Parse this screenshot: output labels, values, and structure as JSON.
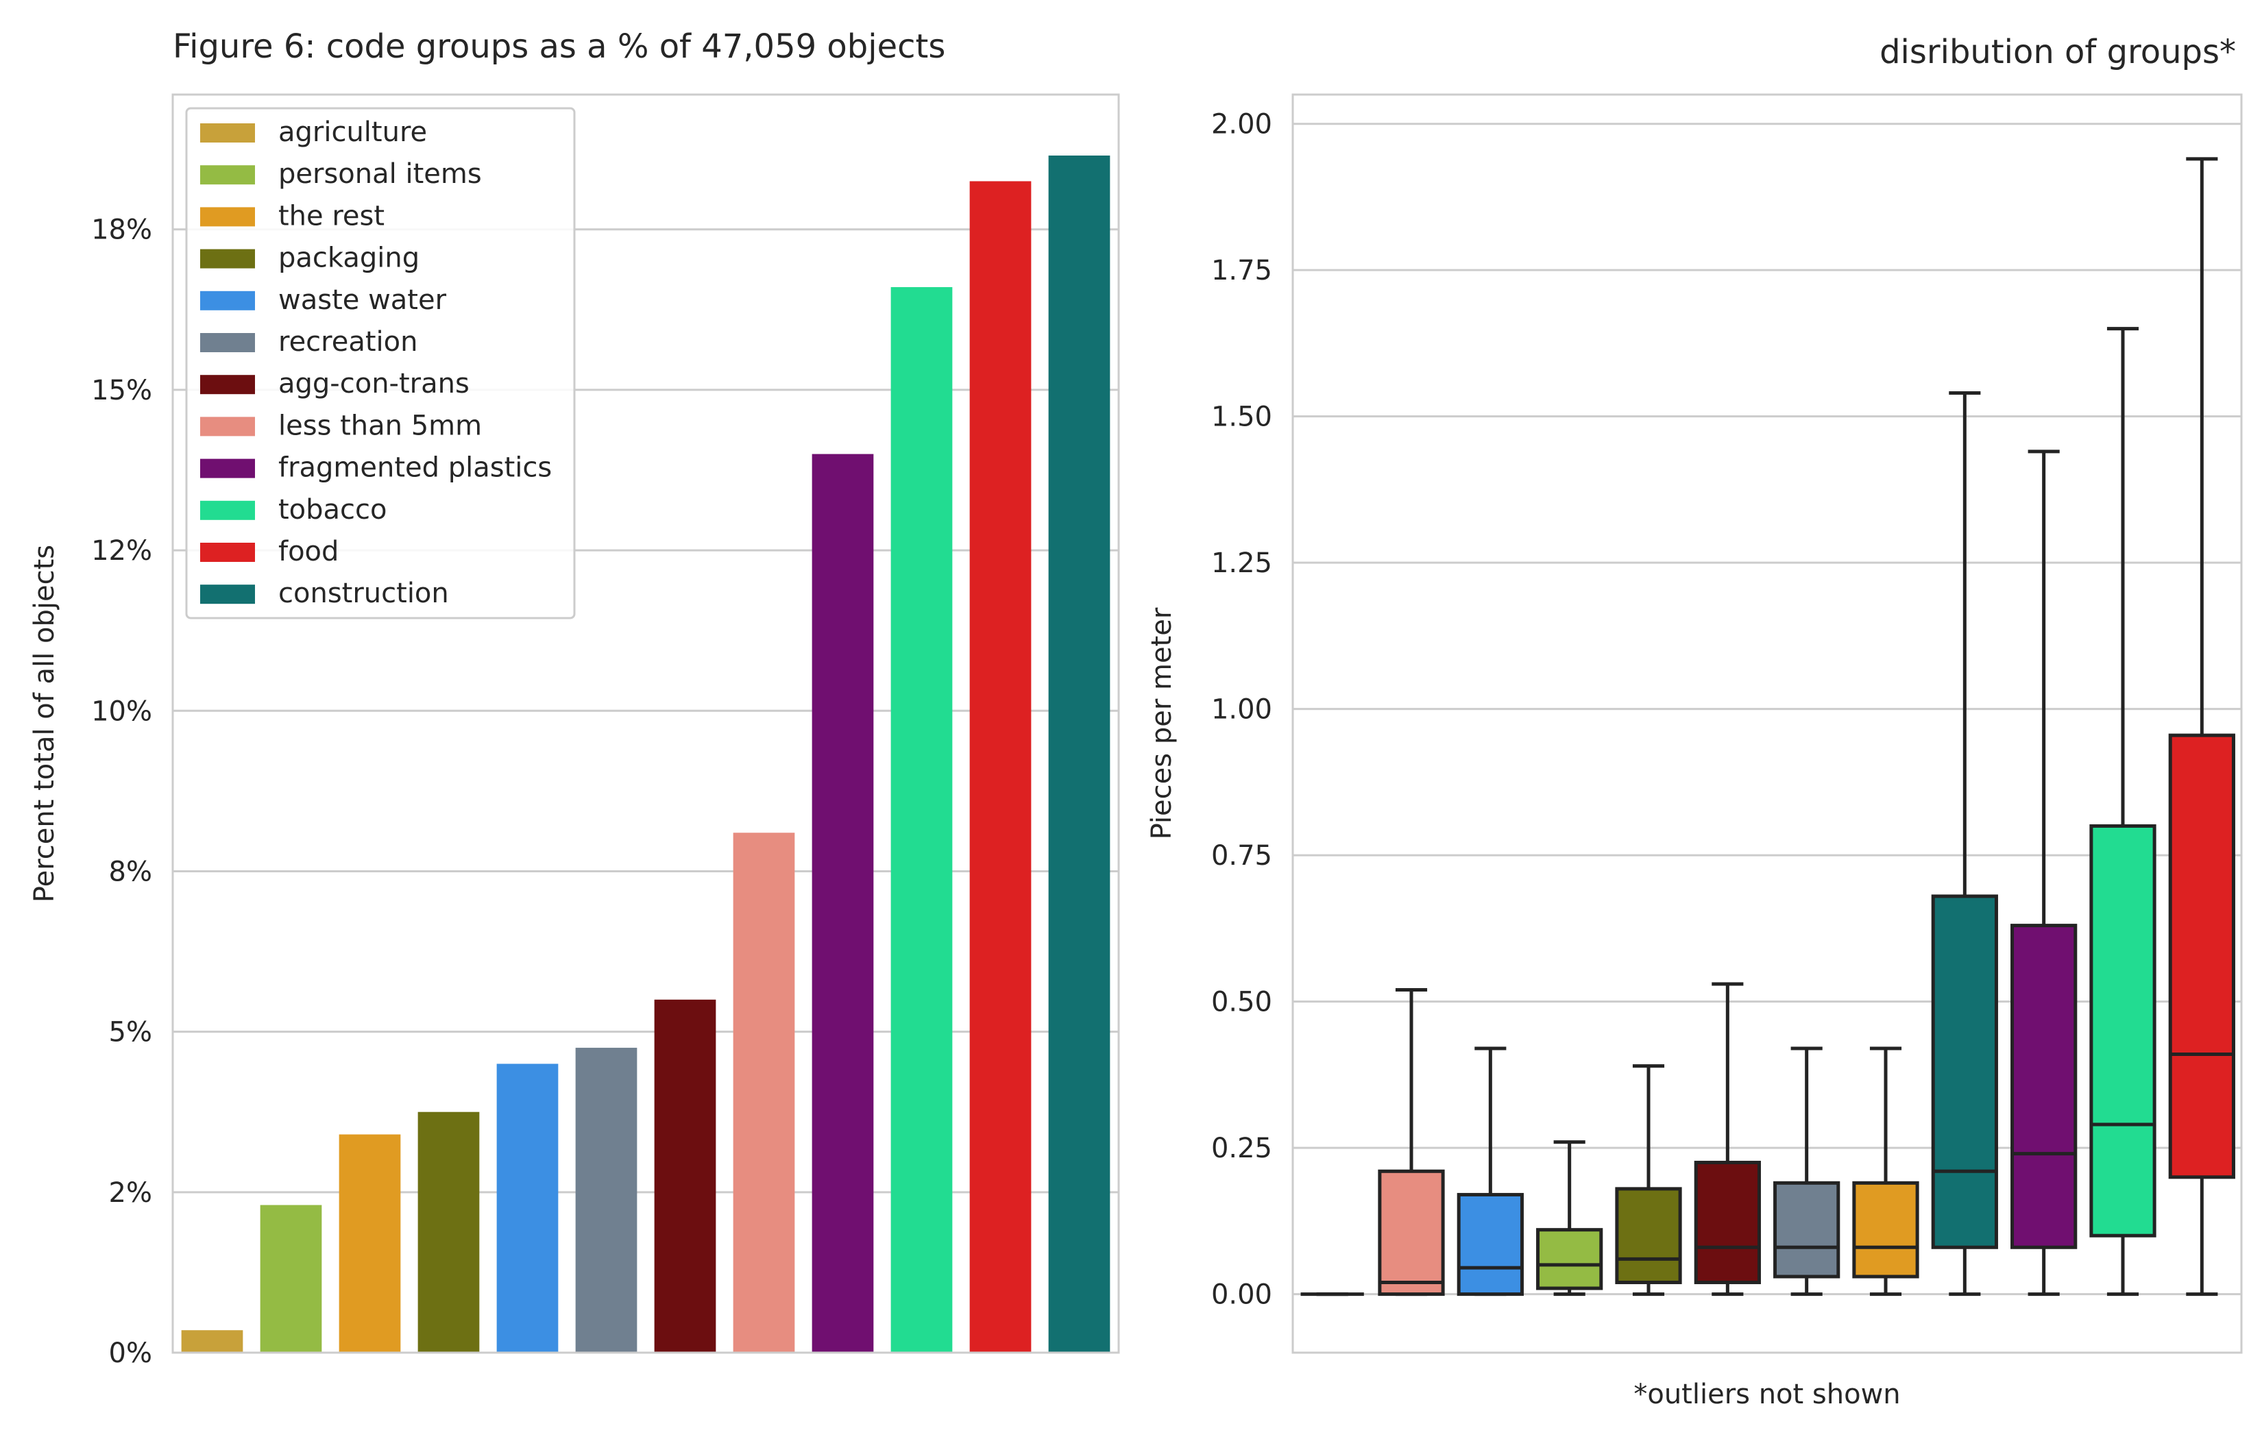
{
  "chart_data": [
    {
      "type": "bar",
      "title": "Figure 6: code groups as a % of 47,059 objects",
      "xlabel": "",
      "ylabel": "Percent total of all objects",
      "ylim": [
        0,
        19.6
      ],
      "yticks": [
        0,
        2.5,
        5,
        7.5,
        10,
        12.5,
        15,
        17.5
      ],
      "ytick_labels": [
        "0%",
        "2%",
        "5%",
        "8%",
        "10%",
        "12%",
        "15%",
        "18%"
      ],
      "grid": true,
      "legend": "top-left",
      "categories": [
        "agriculture",
        "personal items",
        "the rest",
        "packaging",
        "waste water",
        "recreation",
        "agg-con-trans",
        "less than 5mm",
        "fragmented plastics",
        "tobacco",
        "food",
        "construction"
      ],
      "values": [
        0.35,
        2.3,
        3.4,
        3.75,
        4.5,
        4.75,
        5.5,
        8.1,
        14.0,
        16.6,
        18.25,
        18.65
      ],
      "colors": [
        "#c8a13a",
        "#94bb44",
        "#e09b22",
        "#6d7013",
        "#3c8fe3",
        "#708090",
        "#6c0e10",
        "#e78d80",
        "#700f70",
        "#22dc91",
        "#dd2122",
        "#127070"
      ]
    },
    {
      "type": "box",
      "title": "disribution of groups*",
      "xlabel": "*outliers not shown",
      "ylabel": "Pieces per meter",
      "ylim": [
        -0.1,
        2.05
      ],
      "yticks": [
        0,
        0.25,
        0.5,
        0.75,
        1.0,
        1.25,
        1.5,
        1.75,
        2.0
      ],
      "ytick_labels": [
        "0.00",
        "0.25",
        "0.50",
        "0.75",
        "1.00",
        "1.25",
        "1.50",
        "1.75",
        "2.00"
      ],
      "grid": true,
      "boxes": [
        {
          "color": "#c8a13a",
          "min": 0,
          "q1": 0,
          "median": 0,
          "q3": 0,
          "max": 0
        },
        {
          "color": "#e78d80",
          "min": 0,
          "q1": 0,
          "median": 0.02,
          "q3": 0.21,
          "max": 0.52
        },
        {
          "color": "#3c8fe3",
          "min": 0,
          "q1": 0,
          "median": 0.045,
          "q3": 0.17,
          "max": 0.42
        },
        {
          "color": "#94bb44",
          "min": 0,
          "q1": 0.01,
          "median": 0.05,
          "q3": 0.11,
          "max": 0.26
        },
        {
          "color": "#6d7013",
          "min": 0,
          "q1": 0.02,
          "median": 0.06,
          "q3": 0.18,
          "max": 0.39
        },
        {
          "color": "#6c0e10",
          "min": 0,
          "q1": 0.02,
          "median": 0.08,
          "q3": 0.225,
          "max": 0.53
        },
        {
          "color": "#708090",
          "min": 0,
          "q1": 0.03,
          "median": 0.08,
          "q3": 0.19,
          "max": 0.42
        },
        {
          "color": "#e09b22",
          "min": 0,
          "q1": 0.03,
          "median": 0.08,
          "q3": 0.19,
          "max": 0.42
        },
        {
          "color": "#127070",
          "min": 0,
          "q1": 0.08,
          "median": 0.21,
          "q3": 0.68,
          "max": 1.54
        },
        {
          "color": "#700f70",
          "min": 0,
          "q1": 0.08,
          "median": 0.24,
          "q3": 0.63,
          "max": 1.44
        },
        {
          "color": "#22dc91",
          "min": 0,
          "q1": 0.1,
          "median": 0.29,
          "q3": 0.8,
          "max": 1.65
        },
        {
          "color": "#dd2122",
          "min": 0,
          "q1": 0.2,
          "median": 0.41,
          "q3": 0.955,
          "max": 1.94
        }
      ]
    }
  ]
}
